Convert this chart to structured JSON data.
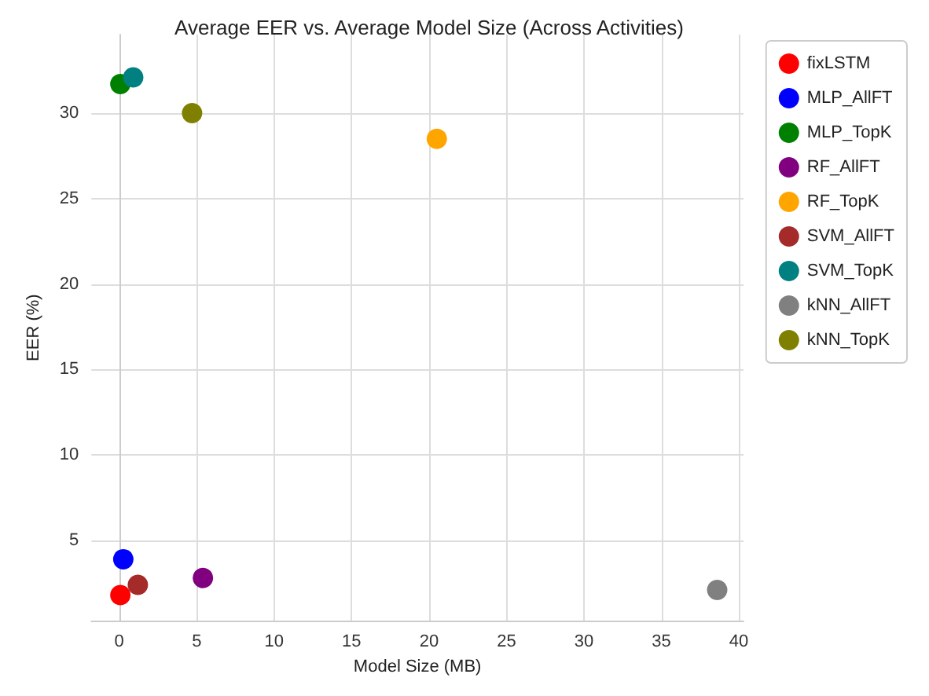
{
  "chart_data": {
    "type": "scatter",
    "title": "Average EER vs. Average Model Size (Across Activities)",
    "xlabel": "Model Size (MB)",
    "ylabel": "EER (%)",
    "series": [
      {
        "name": "fixLSTM",
        "color": "#ff0000",
        "x": [
          0.07
        ],
        "values": [
          1.8
        ]
      },
      {
        "name": "MLP_AllFT",
        "color": "#0000ff",
        "x": [
          0.26
        ],
        "values": [
          3.9
        ]
      },
      {
        "name": "MLP_TopK",
        "color": "#008000",
        "x": [
          0.07
        ],
        "values": [
          31.7
        ]
      },
      {
        "name": "RF_AllFT",
        "color": "#800080",
        "x": [
          5.4
        ],
        "values": [
          2.8
        ]
      },
      {
        "name": "RF_TopK",
        "color": "#ffa500",
        "x": [
          20.5
        ],
        "values": [
          28.5
        ]
      },
      {
        "name": "SVM_AllFT",
        "color": "#a52a2a",
        "x": [
          1.2
        ],
        "values": [
          2.4
        ]
      },
      {
        "name": "SVM_TopK",
        "color": "#008080",
        "x": [
          0.9
        ],
        "values": [
          32.1
        ]
      },
      {
        "name": "kNN_AllFT",
        "color": "#808080",
        "x": [
          38.6
        ],
        "values": [
          2.1
        ]
      },
      {
        "name": "kNN_TopK",
        "color": "#808000",
        "x": [
          4.7
        ],
        "values": [
          30.0
        ]
      }
    ],
    "xlim": [
      -1.8,
      40.3
    ],
    "xticks": [
      0,
      5,
      10,
      15,
      20,
      25,
      30,
      35,
      40
    ],
    "ylim": [
      0.3,
      34.6
    ],
    "yticks": [
      5,
      10,
      15,
      20,
      25,
      30
    ],
    "grid": true,
    "legend": "top right",
    "marker": "circle"
  }
}
